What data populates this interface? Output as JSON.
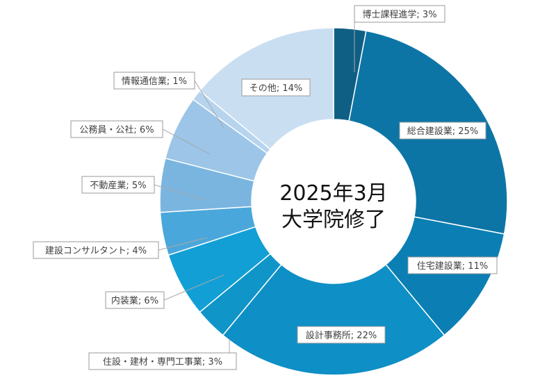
{
  "chart_data": {
    "type": "pie",
    "variant": "donut",
    "center_title_lines": [
      "2025年3月",
      "大学院修了"
    ],
    "legend": "none",
    "slices": [
      {
        "name": "博士課程進学",
        "value": 3,
        "label": "博士課程進学; 3%",
        "color": "#0f5f84"
      },
      {
        "name": "総合建設業",
        "value": 25,
        "label": "総合建設業; 25%",
        "color": "#0d75a6"
      },
      {
        "name": "住宅建設業",
        "value": 11,
        "label": "住宅建設業; 11%",
        "color": "#0b7fb3"
      },
      {
        "name": "設計事務所",
        "value": 22,
        "label": "設計事務所; 22%",
        "color": "#0e8fc6"
      },
      {
        "name": "住設・建材・専門工事業",
        "value": 3,
        "label": "住設・建材・専門工事業; 3%",
        "color": "#1095c9"
      },
      {
        "name": "内装業",
        "value": 6,
        "label": "内装業; 6%",
        "color": "#129fd6"
      },
      {
        "name": "建設コンサルタント",
        "value": 4,
        "label": "建設コンサルタント; 4%",
        "color": "#4aa7db"
      },
      {
        "name": "不動産業",
        "value": 5,
        "label": "不動産業; 5%",
        "color": "#7ab5e0"
      },
      {
        "name": "公務員・公社",
        "value": 6,
        "label": "公務員・公社; 6%",
        "color": "#9cc5e8"
      },
      {
        "name": "情報通信業",
        "value": 1,
        "label": "情報通信業; 1%",
        "color": "#b6d4ee"
      },
      {
        "name": "その他",
        "value": 14,
        "label": "その他; 14%",
        "color": "#c9def1"
      }
    ]
  }
}
